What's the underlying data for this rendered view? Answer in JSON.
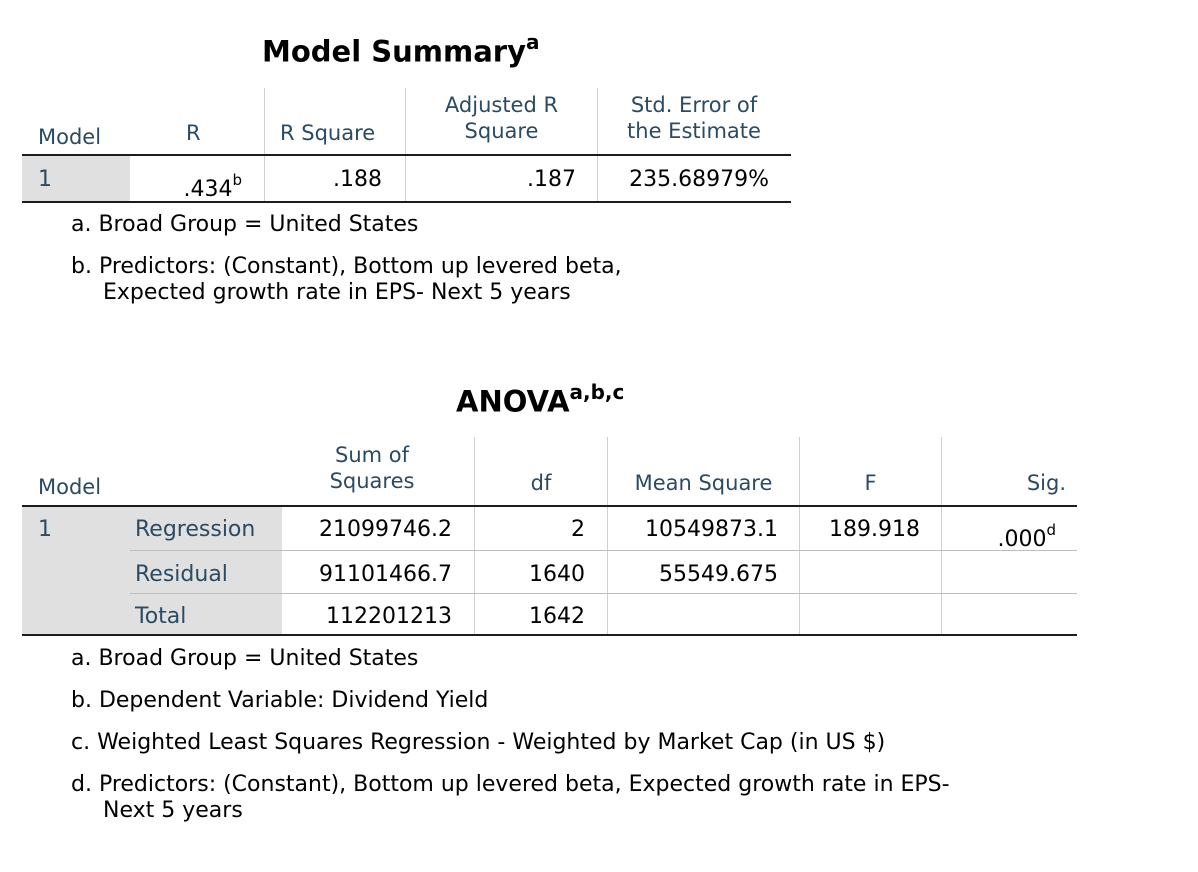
{
  "model_summary": {
    "title": "Model Summary",
    "title_sup": "a",
    "headers": {
      "model": "Model",
      "r": "R",
      "r_square": "R Square",
      "adj_r_square_l1": "Adjusted R",
      "adj_r_square_l2": "Square",
      "std_err_l1": "Std. Error of",
      "std_err_l2": "the Estimate"
    },
    "row": {
      "model": "1",
      "r": ".434",
      "r_sup": "b",
      "r_square": ".188",
      "adj_r_square": ".187",
      "std_err": "235.68979%"
    },
    "footnotes": {
      "a": "a. Broad Group = United States",
      "b_l1": "b. Predictors: (Constant), Bottom up levered beta,",
      "b_l2": "Expected growth rate in EPS- Next 5 years"
    }
  },
  "anova": {
    "title": "ANOVA",
    "title_sup": "a,b,c",
    "headers": {
      "model": "Model",
      "ss_l1": "Sum of",
      "ss_l2": "Squares",
      "df": "df",
      "ms": "Mean Square",
      "f": "F",
      "sig": "Sig."
    },
    "model_num": "1",
    "rows": [
      {
        "label": "Regression",
        "ss": "21099746.2",
        "df": "2",
        "ms": "10549873.1",
        "f": "189.918",
        "sig": ".000",
        "sig_sup": "d"
      },
      {
        "label": "Residual",
        "ss": "91101466.7",
        "df": "1640",
        "ms": "55549.675",
        "f": "",
        "sig": ""
      },
      {
        "label": "Total",
        "ss": "112201213",
        "df": "1642",
        "ms": "",
        "f": "",
        "sig": ""
      }
    ],
    "footnotes": {
      "a": "a. Broad Group = United States",
      "b": "b. Dependent Variable: Dividend Yield",
      "c": "c. Weighted Least Squares Regression - Weighted by Market Cap (in US $)",
      "d_l1": "d. Predictors: (Constant), Bottom up levered beta, Expected growth rate in EPS-",
      "d_l2": "Next 5 years"
    }
  }
}
